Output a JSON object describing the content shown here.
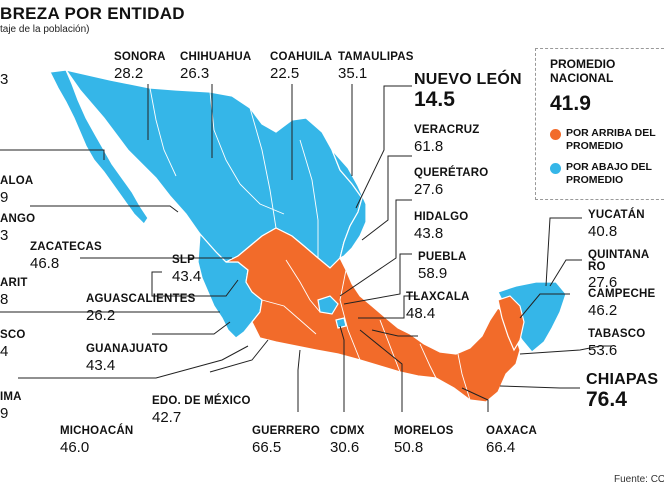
{
  "title": "BREZA POR ENTIDAD",
  "subtitle": "taje de la población)",
  "colors": {
    "above": "#f26b2a",
    "below": "#35b6e8",
    "border": "#ffffff",
    "leader": "#222222"
  },
  "legend": {
    "title_line1": "PROMEDIO",
    "title_line2": "NACIONAL",
    "value": "41.9",
    "above_line1": "POR ARRIBA DEL",
    "above_line2": "PROMEDIO",
    "below_line1": "POR ABAJO DEL",
    "below_line2": "PROMEDIO"
  },
  "labels": {
    "bc": {
      "name": "",
      "value": "3"
    },
    "sonora": {
      "name": "SONORA",
      "value": "28.2"
    },
    "chih": {
      "name": "CHIHUAHUA",
      "value": "26.3"
    },
    "coah": {
      "name": "COAHUILA",
      "value": "22.5"
    },
    "tamps": {
      "name": "TAMAULIPAS",
      "value": "35.1"
    },
    "nl": {
      "name": "NUEVO LEÓN",
      "value": "14.5"
    },
    "ver": {
      "name": "VERACRUZ",
      "value": "61.8"
    },
    "qro": {
      "name": "QUERÉTARO",
      "value": "27.6"
    },
    "hgo": {
      "name": "HIDALGO",
      "value": "43.8"
    },
    "pue": {
      "name": "PUEBLA",
      "value": "58.9"
    },
    "tlax": {
      "name": "TLAXCALA",
      "value": "48.4"
    },
    "sin": {
      "name": "ALOA",
      "value": "9"
    },
    "dgo": {
      "name": "ANGO",
      "value": "3"
    },
    "zac": {
      "name": "ZACATECAS",
      "value": "46.8"
    },
    "slp": {
      "name": "SLP",
      "value": "43.4"
    },
    "nay": {
      "name": "ARIT",
      "value": "8"
    },
    "ags": {
      "name": "AGUASCALIENTES",
      "value": "26.2"
    },
    "jal": {
      "name": "SCO",
      "value": "4"
    },
    "gto": {
      "name": "GUANAJUATO",
      "value": "43.4"
    },
    "col": {
      "name": "IMA",
      "value": "9"
    },
    "mich": {
      "name": "MICHOACÁN",
      "value": "46.0"
    },
    "mex": {
      "name": "EDO. DE MÉXICO",
      "value": "42.7"
    },
    "gro": {
      "name": "GUERRERO",
      "value": "66.5"
    },
    "cdmx": {
      "name": "CDMX",
      "value": "30.6"
    },
    "mor": {
      "name": "MORELOS",
      "value": "50.8"
    },
    "oax": {
      "name": "OAXACA",
      "value": "66.4"
    },
    "chis": {
      "name": "CHIAPAS",
      "value": "76.4"
    },
    "yuc": {
      "name": "YUCATÁN",
      "value": "40.8"
    },
    "qroo": {
      "name": "QUINTANA RO",
      "value": "27.6"
    },
    "camp": {
      "name": "CAMPECHE",
      "value": "46.2"
    },
    "tab": {
      "name": "TABASCO",
      "value": "53.6"
    }
  },
  "source": "Fuente: CO"
}
